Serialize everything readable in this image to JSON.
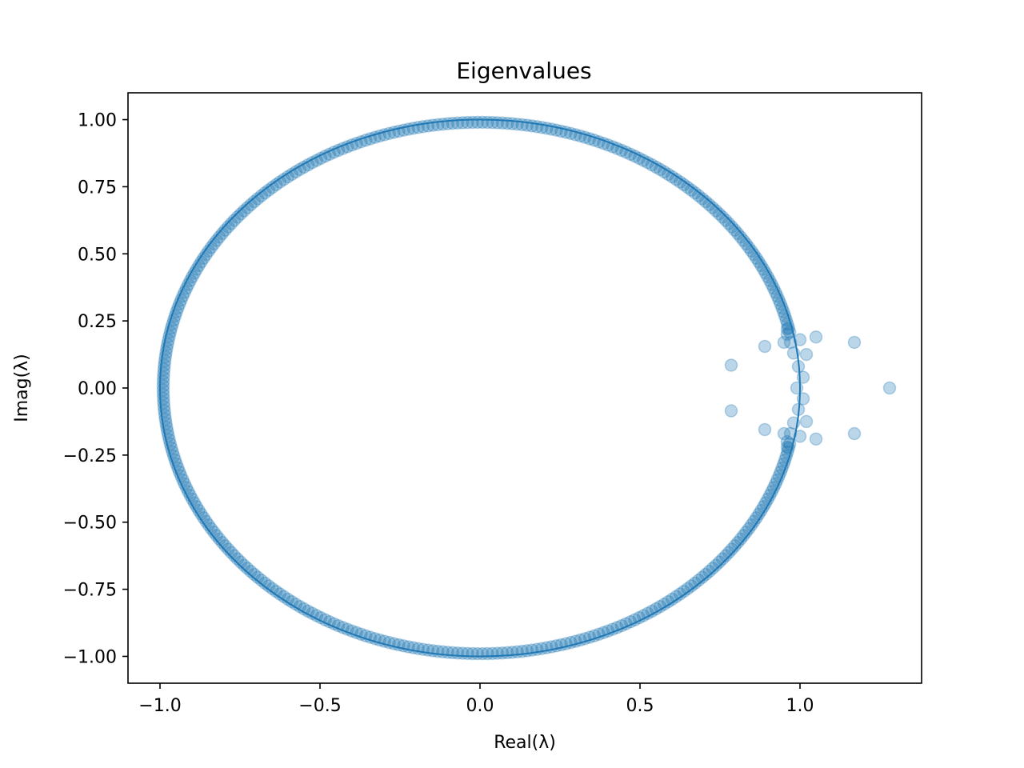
{
  "chart_data": {
    "type": "scatter",
    "title": "Eigenvalues",
    "xlabel": "Real(λ)",
    "ylabel": "Imag(λ)",
    "xlim": [
      -1.1,
      1.38
    ],
    "ylim": [
      -1.1,
      1.1
    ],
    "grid": false,
    "xticks": [
      -1.0,
      -0.5,
      0.0,
      0.5,
      1.0
    ],
    "xtick_labels": [
      "−1.0",
      "−0.5",
      "0.0",
      "0.5",
      "1.0"
    ],
    "yticks": [
      1.0,
      0.75,
      0.5,
      0.25,
      0.0,
      -0.25,
      -0.5,
      -0.75,
      -1.0
    ],
    "ytick_labels": [
      "1.00",
      "0.75",
      "0.50",
      "0.25",
      "0.00",
      "−0.25",
      "−0.50",
      "−0.75",
      "−1.00"
    ],
    "colors": {
      "series": "#1f77b4"
    },
    "unit_circle": {
      "center": [
        0,
        0
      ],
      "radius": 1.0
    },
    "bulk_eigenvalues": {
      "count": 400,
      "radius": 0.99,
      "exclude_arg_range": [
        -0.2,
        0.2
      ]
    },
    "outlier_eigenvalues": [
      [
        1.28,
        0.0
      ],
      [
        1.17,
        0.17
      ],
      [
        1.17,
        -0.17
      ],
      [
        1.05,
        0.19
      ],
      [
        1.05,
        -0.19
      ],
      [
        1.0,
        0.18
      ],
      [
        1.0,
        -0.18
      ],
      [
        1.02,
        0.125
      ],
      [
        1.02,
        -0.125
      ],
      [
        1.01,
        0.04
      ],
      [
        1.01,
        -0.04
      ],
      [
        0.98,
        0.13
      ],
      [
        0.98,
        -0.13
      ],
      [
        0.97,
        0.17
      ],
      [
        0.97,
        -0.17
      ],
      [
        0.96,
        0.2
      ],
      [
        0.96,
        -0.2
      ],
      [
        0.96,
        0.22
      ],
      [
        0.96,
        -0.22
      ],
      [
        0.95,
        0.17
      ],
      [
        0.95,
        -0.17
      ],
      [
        0.89,
        0.155
      ],
      [
        0.89,
        -0.155
      ],
      [
        0.785,
        0.085
      ],
      [
        0.785,
        -0.085
      ],
      [
        0.995,
        0.08
      ],
      [
        0.995,
        -0.08
      ],
      [
        0.99,
        0.0
      ]
    ]
  }
}
